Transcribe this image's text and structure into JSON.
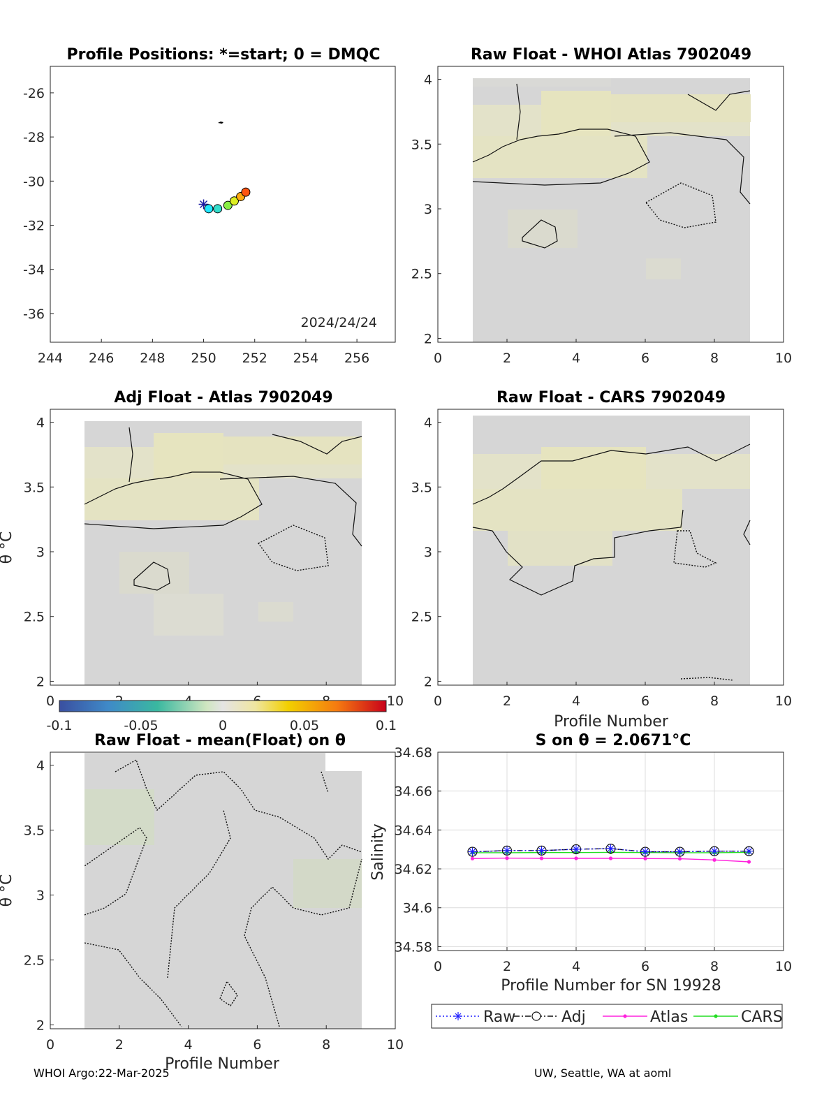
{
  "footer": {
    "left": "WHOI Argo:22-Mar-2025",
    "right": "UW, Seattle, WA at aoml"
  },
  "colors": {
    "raw": "#1f1fff",
    "adj": "#111111",
    "atlas": "#ff22dd",
    "cars": "#22dd22"
  },
  "chart_data": [
    {
      "type": "scatter",
      "title": "Profile Positions: *=start; 0 = DMQC",
      "annotation": "2024/24/24",
      "xlim": [
        244,
        257.5
      ],
      "ylim": [
        -37.3,
        -24.8
      ],
      "xticks": [
        "244",
        "246",
        "248",
        "250",
        "252",
        "254",
        "256"
      ],
      "yticks": [
        "-26",
        "-28",
        "-30",
        "-32",
        "-34",
        "-36"
      ],
      "start_marker": "*",
      "points": [
        {
          "lon": 250.0,
          "lat": -31.05
        },
        {
          "lon": 250.2,
          "lat": -31.25
        },
        {
          "lon": 250.55,
          "lat": -31.25
        },
        {
          "lon": 250.95,
          "lat": -31.1
        },
        {
          "lon": 251.2,
          "lat": -30.9
        },
        {
          "lon": 251.45,
          "lat": -30.7
        },
        {
          "lon": 251.65,
          "lat": -30.5
        }
      ]
    },
    {
      "type": "heatmap",
      "title": "Raw Float - WHOI Atlas  7902049",
      "xlim": [
        0,
        10
      ],
      "ylim": [
        1.97,
        4.1
      ],
      "xticks": [
        "0",
        "2",
        "4",
        "6",
        "8",
        "10"
      ],
      "yticks": [
        "2",
        "2.5",
        "3",
        "3.5",
        "4"
      ]
    },
    {
      "type": "heatmap",
      "title": "Adj Float - Atlas  7902049",
      "ylabel": "θ °C",
      "xlim": [
        0,
        10
      ],
      "ylim": [
        1.97,
        4.1
      ],
      "xticks": [
        "0",
        "2",
        "4",
        "6",
        "8",
        "10"
      ],
      "yticks": [
        "2",
        "2.5",
        "3",
        "3.5",
        "4"
      ]
    },
    {
      "type": "heatmap",
      "title": "Raw Float - CARS  7902049",
      "xlabel": "Profile Number",
      "xlim": [
        0,
        10
      ],
      "ylim": [
        1.97,
        4.1
      ],
      "xticks": [
        "0",
        "2",
        "4",
        "6",
        "8",
        "10"
      ],
      "yticks": [
        "2",
        "2.5",
        "3",
        "3.5",
        "4"
      ]
    },
    {
      "type": "heatmap",
      "title": "Raw Float - mean(Float) on θ",
      "xlabel": "Profile Number",
      "ylabel": "θ °C",
      "xlim": [
        0,
        10
      ],
      "ylim": [
        1.97,
        4.1
      ],
      "xticks": [
        "0",
        "2",
        "4",
        "6",
        "8",
        "10"
      ],
      "yticks": [
        "2",
        "2.5",
        "3",
        "3.5",
        "4"
      ]
    },
    {
      "type": "line",
      "title": "S on θ = 2.0671°C",
      "xlabel": "Profile Number for SN 19928",
      "ylabel": "Salinity",
      "xlim": [
        0,
        10
      ],
      "ylim": [
        34.578,
        34.68
      ],
      "xticks": [
        "0",
        "2",
        "4",
        "6",
        "8",
        "10"
      ],
      "yticks": [
        "34.58",
        "34.6",
        "34.62",
        "34.64",
        "34.66",
        "34.68"
      ],
      "grid": true,
      "legend_position": "bottom",
      "x": [
        1,
        2,
        3,
        4,
        5,
        6,
        7,
        8,
        9
      ],
      "series": [
        {
          "name": "Raw",
          "values": [
            34.6288,
            34.6294,
            34.6294,
            34.6301,
            34.6304,
            34.6288,
            34.6288,
            34.6291,
            34.6291
          ]
        },
        {
          "name": "Adj",
          "values": [
            34.6288,
            34.6294,
            34.6294,
            34.6301,
            34.6304,
            34.6288,
            34.6288,
            34.6291,
            34.6291
          ]
        },
        {
          "name": "Atlas",
          "values": [
            34.6253,
            34.6255,
            34.6254,
            34.6254,
            34.6254,
            34.6253,
            34.6252,
            34.6246,
            34.6236
          ]
        },
        {
          "name": "CARS",
          "values": [
            34.6283,
            34.6283,
            34.6284,
            34.6284,
            34.6285,
            34.6284,
            34.6283,
            34.6283,
            34.6285
          ]
        }
      ]
    }
  ],
  "colorbar": {
    "ticks": [
      "-0.1",
      "-0.05",
      "0",
      "0.05",
      "0.1"
    ],
    "range": [
      -0.1,
      0.1
    ]
  }
}
